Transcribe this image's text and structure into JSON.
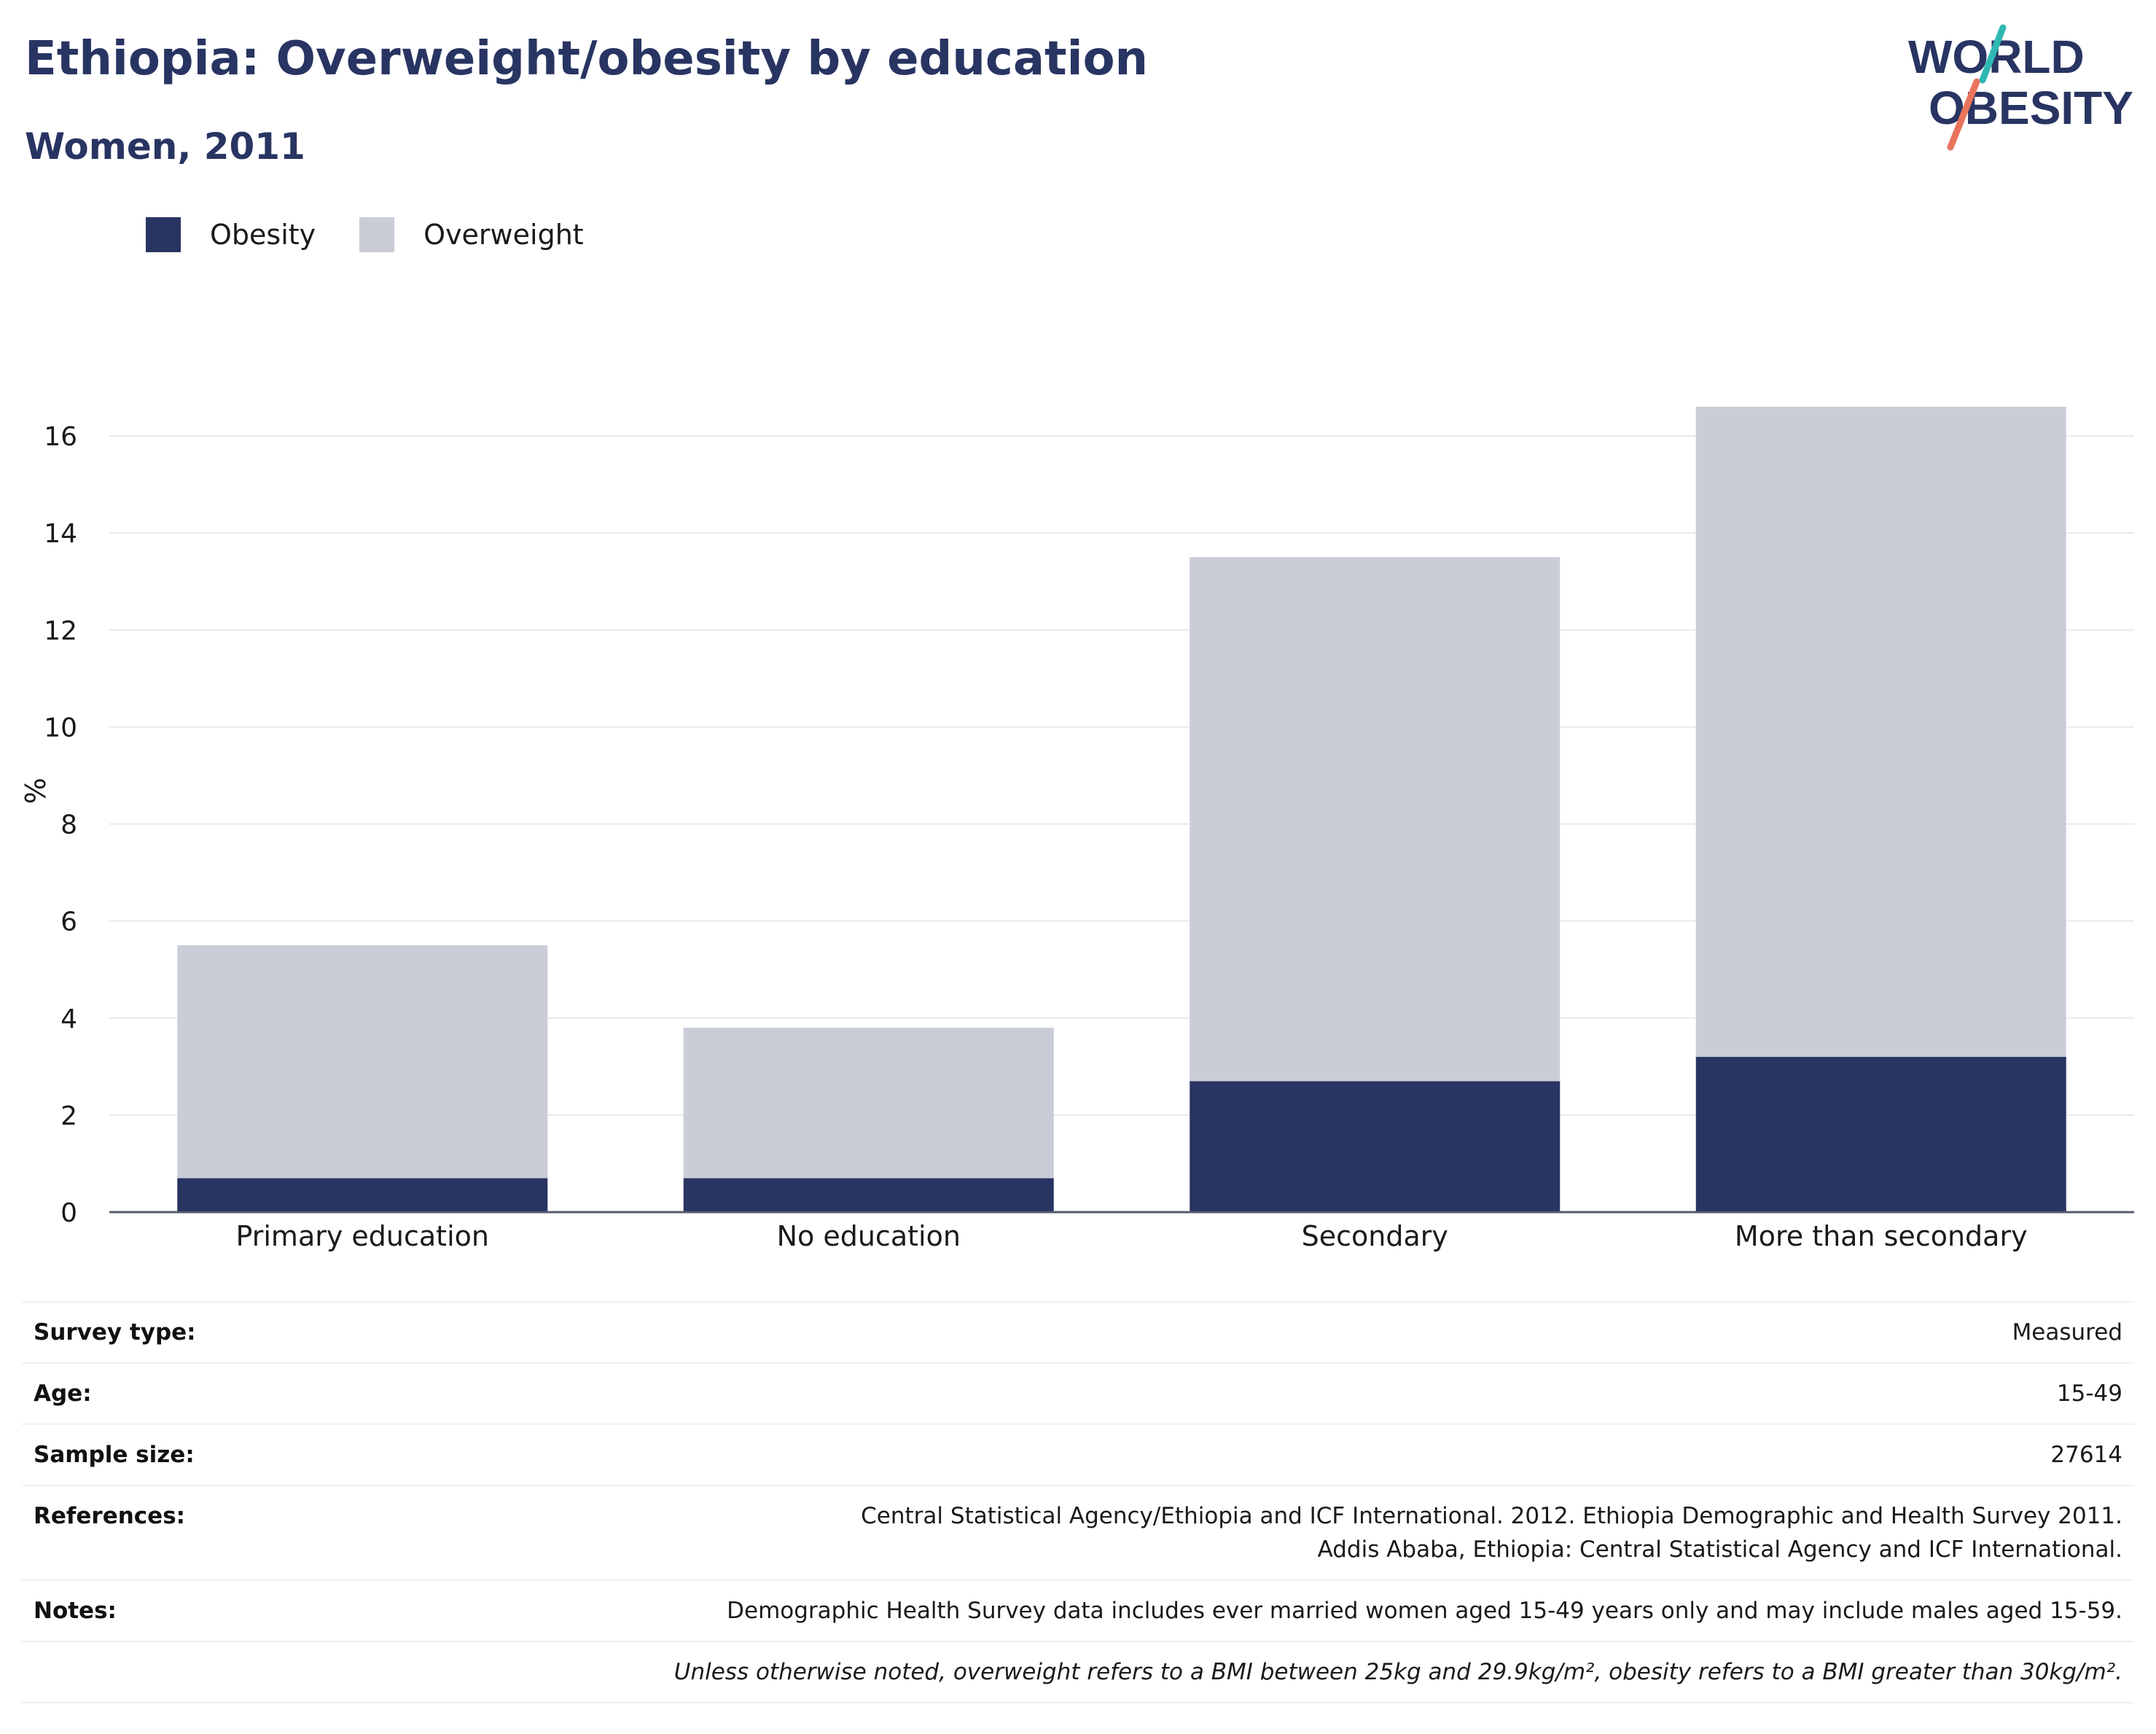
{
  "header": {
    "title": "Ethiopia: Overweight/obesity by education",
    "subtitle": "Women, 2011",
    "logo_line1": "WORLD",
    "logo_line2": "OBESITY"
  },
  "colors": {
    "obesity": "#283462",
    "overweight": "#cacdd8",
    "title": "#283462",
    "logo_teal": "#2fb8b2",
    "logo_coral": "#e9735c"
  },
  "legend": {
    "items": [
      {
        "label": "Obesity",
        "color": "#283462"
      },
      {
        "label": "Overweight",
        "color": "#cacdd8"
      }
    ]
  },
  "chart_data": {
    "type": "bar",
    "stacked": true,
    "categories": [
      "Primary education",
      "No education",
      "Secondary",
      "More than secondary"
    ],
    "series": [
      {
        "name": "Obesity",
        "values": [
          0.7,
          0.7,
          2.7,
          3.2
        ]
      },
      {
        "name": "Overweight",
        "values": [
          4.8,
          3.1,
          10.8,
          13.4
        ]
      }
    ],
    "ylabel": "%",
    "ylim": [
      0,
      16.8
    ],
    "yticks": [
      0,
      2,
      4,
      6,
      8,
      10,
      12,
      14,
      16
    ],
    "grid": true,
    "legend_position": "top-left"
  },
  "info": {
    "rows": [
      {
        "label": "Survey type:",
        "value": "Measured"
      },
      {
        "label": "Age:",
        "value": "15-49"
      },
      {
        "label": "Sample size:",
        "value": "27614"
      },
      {
        "label": "References:",
        "value": "Central Statistical Agency/Ethiopia and ICF International. 2012. Ethiopia Demographic and Health Survey 2011. Addis Ababa, Ethiopia: Central Statistical Agency and ICF International."
      },
      {
        "label": "Notes:",
        "value": "Demographic Health Survey data includes ever married women aged 15-49 years only and may include males aged 15-59."
      }
    ],
    "footnote": "Unless otherwise noted, overweight refers to a BMI between 25kg and 29.9kg/m², obesity refers to a BMI greater than 30kg/m²."
  }
}
